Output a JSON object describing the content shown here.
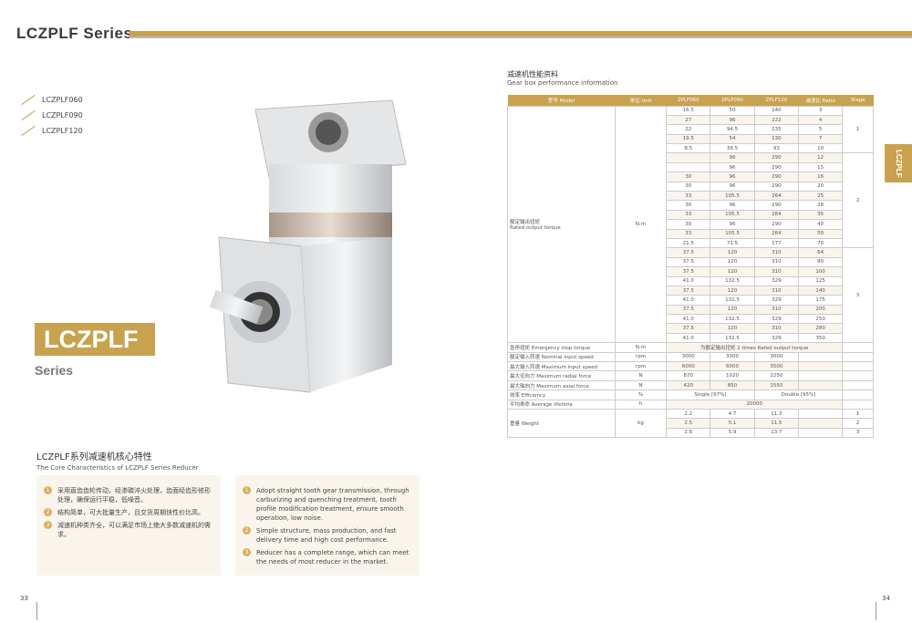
{
  "header": {
    "title": "LCZPLF Series"
  },
  "models": [
    "LCZPLF060",
    "LCZPLF090",
    "LCZPLF120"
  ],
  "badge": {
    "name": "LCZPLF",
    "series": "Series"
  },
  "core": {
    "title_cn": "LCZPLF系列减速机核心特性",
    "title_en": "The Core Characteristics of LCZPLF Series Reducer",
    "cn": [
      "采用直齿齿轮传动，经渗碳淬火处理，齿面经齿形修形处理，确保运行平稳，低噪音。",
      "结构简单，可大批量生产，且交货周期快性价比高。",
      "减速机种类齐全，可以满足市场上绝大多数减速机的需求。"
    ],
    "en": [
      "Adopt straight tooth gear transmission, through carburizing and quenching treatment, tooth profile modification treatment, ensure smooth operation, low noise.",
      "Simple structure, mass production, and fast delivery time and high cost performance.",
      "Reducer has a complete range, which can meet the needs of most reducer in the market."
    ],
    "nums": [
      "1",
      "2",
      "3"
    ]
  },
  "perf": {
    "title_cn": "减速机性能资料",
    "title_en": "Gear box performance information"
  },
  "table": {
    "headers": [
      "型号 Model",
      "单位 Unit",
      "ZPLF060",
      "ZPLF090",
      "ZPLF120",
      "减速比 Ratio",
      "Stage"
    ],
    "torque_label_cn": "额定输出扭矩",
    "torque_label_en": "Rated output torque",
    "torque_unit": "N.m",
    "stages": [
      {
        "stage": "1",
        "rows": [
          [
            "16.5",
            "50",
            "140",
            "3"
          ],
          [
            "27",
            "96",
            "222",
            "4"
          ],
          [
            "22",
            "94.5",
            "235",
            "5"
          ],
          [
            "19.5",
            "54",
            "130",
            "7"
          ],
          [
            "8.5",
            "39.5",
            "93",
            "10"
          ]
        ]
      },
      {
        "stage": "2",
        "rows": [
          [
            "",
            "96",
            "290",
            "12"
          ],
          [
            "",
            "96",
            "290",
            "15"
          ],
          [
            "30",
            "96",
            "290",
            "16"
          ],
          [
            "30",
            "96",
            "290",
            "20"
          ],
          [
            "33",
            "105.5",
            "264",
            "25"
          ],
          [
            "30",
            "96",
            "290",
            "28"
          ],
          [
            "33",
            "105.5",
            "264",
            "35"
          ],
          [
            "30",
            "96",
            "290",
            "40"
          ],
          [
            "33",
            "105.5",
            "264",
            "50"
          ],
          [
            "21.5",
            "71.5",
            "177",
            "70"
          ]
        ]
      },
      {
        "stage": "3",
        "rows": [
          [
            "37.5",
            "120",
            "310",
            "64"
          ],
          [
            "37.5",
            "120",
            "310",
            "80"
          ],
          [
            "37.5",
            "120",
            "310",
            "100"
          ],
          [
            "41.0",
            "132.5",
            "329",
            "125"
          ],
          [
            "37.5",
            "120",
            "310",
            "140"
          ],
          [
            "41.0",
            "132.5",
            "329",
            "175"
          ],
          [
            "37.5",
            "120",
            "310",
            "200"
          ],
          [
            "41.0",
            "132.5",
            "329",
            "250"
          ],
          [
            "37.5",
            "120",
            "310",
            "280"
          ],
          [
            "41.0",
            "132.5",
            "329",
            "350"
          ]
        ]
      }
    ],
    "extra": [
      {
        "label": "急停扭矩 Emergency stop torque",
        "unit": "N.m",
        "span": "为额定输出扭矩 2 times Rated output torque"
      },
      {
        "label": "额定输入转速 Nominal input speed",
        "unit": "rpm",
        "vals": [
          "3000",
          "3000",
          "3000"
        ]
      },
      {
        "label": "最大输入转速 Maximum input speed",
        "unit": "rpm",
        "vals": [
          "6000",
          "6000",
          "3500"
        ]
      },
      {
        "label": "最大径向力 Maximum radial force",
        "unit": "N",
        "vals": [
          "870",
          "1020",
          "2250"
        ]
      },
      {
        "label": "最大轴向力 Maximum axial force",
        "unit": "N",
        "vals": [
          "420",
          "850",
          "1550"
        ]
      }
    ],
    "efficiency": {
      "label": "效率 Efficiency",
      "unit": "%",
      "single": "Single [97%]",
      "double": "Double [95%]"
    },
    "lifetime": {
      "label": "平均寿命 Average lifetime",
      "unit": "h",
      "value": "20000"
    },
    "weight": {
      "label": "重量 Weight",
      "unit": "kg",
      "rows": [
        [
          "2.2",
          "4.7",
          "11.3",
          "1"
        ],
        [
          "2.5",
          "5.1",
          "11.5",
          "2"
        ],
        [
          "2.8",
          "5.9",
          "13.7",
          "3"
        ]
      ]
    }
  },
  "side_tab": "LCZPLF",
  "pages": {
    "left": "33",
    "right": "34"
  },
  "colors": {
    "accent": "#c8a24f",
    "panel": "#faf5ec"
  }
}
